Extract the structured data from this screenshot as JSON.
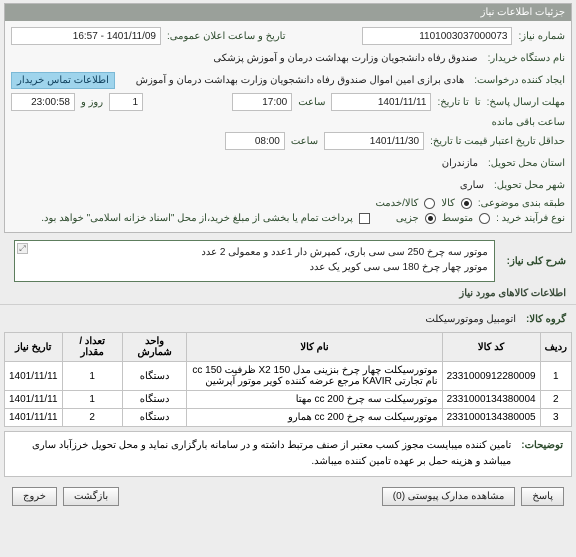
{
  "panel": {
    "title": "جزئیات اطلاعات نیاز"
  },
  "labels": {
    "need_no": "شماره نیاز:",
    "buyer_name": "نام دستگاه خریدار:",
    "request_creator": "ایجاد کننده درخواست:",
    "response_deadline": "مهلت ارسال پاسخ:",
    "to_time": "تا تاریخ:",
    "validity_deadline": "حداقل تاریخ اعتبار قیمت تا تاریخ:",
    "province": "استان محل تحویل:",
    "city": "شهر محل تحویل:",
    "category": "طبقه بندی موضوعی:",
    "process_type": "نوع فرآیند خرید :",
    "announce_date": "تاریخ و ساعت اعلان عمومی:",
    "clock": "ساعت",
    "dayand": "روز و",
    "remain": "ساعت باقی مانده",
    "upto": "تا",
    "contact_btn": "اطلاعات تماس خریدار",
    "goods": "کالا",
    "service": "کالا/خدمت",
    "mid": "متوسط",
    "small": "جزیی",
    "partial_pay": "پرداخت تمام یا بخشی از مبلغ خرید،از محل \"اسناد خزانه اسلامی\" خواهد بود.",
    "summary_lbl": "شرح کلی نیاز:",
    "items_title": "اطلاعات کالاهای مورد نیاز",
    "group_lbl": "گروه کالا:",
    "desc_lbl": "توضیحات:",
    "cols": {
      "row": "ردیف",
      "code": "کد کالا",
      "name": "نام کالا",
      "unit": "واحد شمارش",
      "qty": "تعداد / مقدار",
      "date": "تاریخ نیاز"
    }
  },
  "fields": {
    "need_no": "1101003037000073",
    "buyer_name": "صندوق رفاه دانشجویان وزارت بهداشت  درمان و آموزش پزشکی",
    "request_creator": "هادی برازی امین اموال صندوق رفاه دانشجویان وزارت بهداشت  درمان و آموزش",
    "announce_date": "1401/11/09 - 16:57",
    "resp_date": "1401/11/11",
    "resp_time": "17:00",
    "resp_count": "1",
    "cnt_hours": "23:00:58",
    "valid_date": "1401/11/30",
    "valid_time": "08:00",
    "province": "مازندران",
    "city": "ساری",
    "group_value": "اتومبیل وموتورسیکلت"
  },
  "summary": {
    "l1": "موتور سه چرخ 250 سی سی باری، کمپرش دار 1عدد و  معمولی 2 عدد",
    "l2": "موتور چهار چرخ 180 سی سی کویر یک عدد"
  },
  "items": [
    {
      "code": "2331000912280009",
      "name": "موتورسیکلت چهار چرخ بنزینی مدل X2 150 ظرفیت cc 150 نام تجارتی KAVIR مرجع عرضه کننده کویر موتور آپرشین",
      "unit": "دستگاه",
      "qty": "1",
      "date": "1401/11/11"
    },
    {
      "code": "2331000134380004",
      "name": "موتورسیکلت سه چرخ cc 200 مهتا",
      "unit": "دستگاه",
      "qty": "1",
      "date": "1401/11/11"
    },
    {
      "code": "2331000134380005",
      "name": "موتورسیکلت سه چرخ cc 200 همارو",
      "unit": "دستگاه",
      "qty": "2",
      "date": "1401/11/11"
    }
  ],
  "description": "تامین کننده میبایست مجوز کسب معتبر از صنف مرتبط داشته و در سامانه بارگزاری نماید و محل تحویل خرزآباد ساری میباشد و هزینه حمل بر عهده تامین کننده میباشد.",
  "buttons": {
    "answer": "پاسخ",
    "attach": "مشاهده مدارک پیوستی  (0)",
    "back": "بازگشت",
    "exit": "خروج"
  }
}
